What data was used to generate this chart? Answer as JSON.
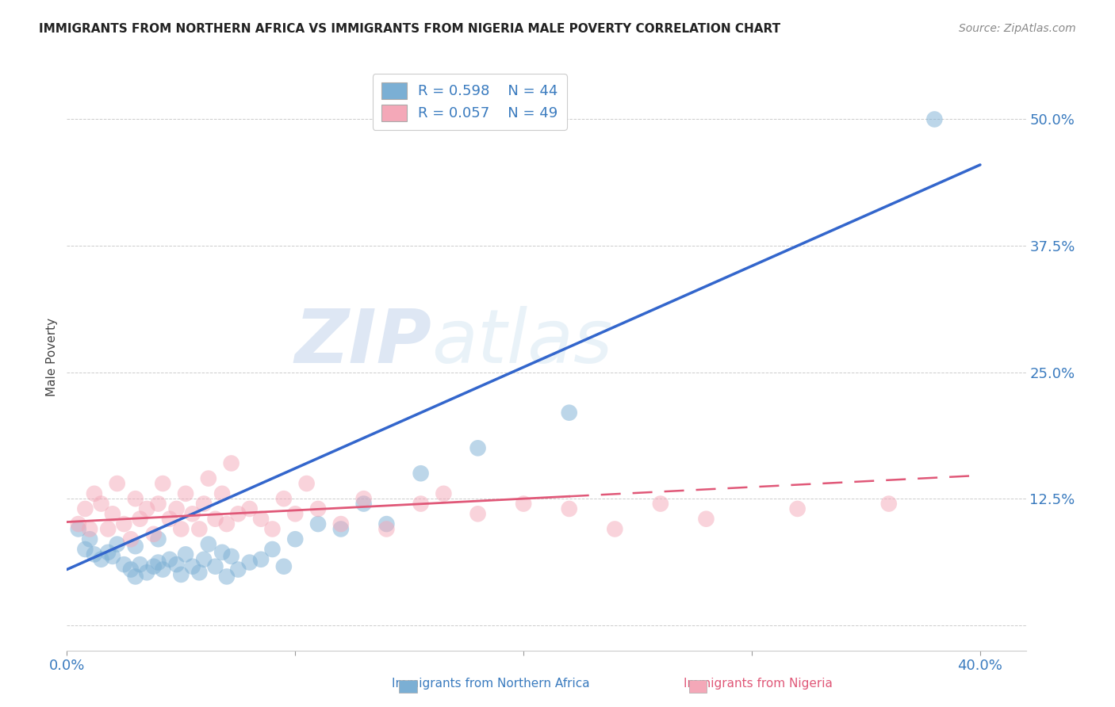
{
  "title": "IMMIGRANTS FROM NORTHERN AFRICA VS IMMIGRANTS FROM NIGERIA MALE POVERTY CORRELATION CHART",
  "source": "Source: ZipAtlas.com",
  "ylabel": "Male Poverty",
  "y_ticks": [
    0.0,
    0.125,
    0.25,
    0.375,
    0.5
  ],
  "y_tick_labels": [
    "",
    "12.5%",
    "25.0%",
    "37.5%",
    "50.0%"
  ],
  "x_lim": [
    0.0,
    0.42
  ],
  "y_lim": [
    -0.025,
    0.555
  ],
  "legend_r1": "R = 0.598",
  "legend_n1": "N = 44",
  "legend_r2": "R = 0.057",
  "legend_n2": "N = 49",
  "color_blue": "#7BAFD4",
  "color_pink": "#F4A8B8",
  "color_blue_line": "#3366CC",
  "color_pink_line": "#E05878",
  "watermark_zip": "ZIP",
  "watermark_atlas": "atlas",
  "blue_scatter_x": [
    0.005,
    0.008,
    0.01,
    0.012,
    0.015,
    0.018,
    0.02,
    0.022,
    0.025,
    0.028,
    0.03,
    0.03,
    0.032,
    0.035,
    0.038,
    0.04,
    0.04,
    0.042,
    0.045,
    0.048,
    0.05,
    0.052,
    0.055,
    0.058,
    0.06,
    0.062,
    0.065,
    0.068,
    0.07,
    0.072,
    0.075,
    0.08,
    0.085,
    0.09,
    0.095,
    0.1,
    0.11,
    0.12,
    0.13,
    0.14,
    0.155,
    0.18,
    0.22,
    0.38
  ],
  "blue_scatter_y": [
    0.095,
    0.075,
    0.085,
    0.07,
    0.065,
    0.072,
    0.068,
    0.08,
    0.06,
    0.055,
    0.048,
    0.078,
    0.06,
    0.052,
    0.058,
    0.062,
    0.085,
    0.055,
    0.065,
    0.06,
    0.05,
    0.07,
    0.058,
    0.052,
    0.065,
    0.08,
    0.058,
    0.072,
    0.048,
    0.068,
    0.055,
    0.062,
    0.065,
    0.075,
    0.058,
    0.085,
    0.1,
    0.095,
    0.12,
    0.1,
    0.15,
    0.175,
    0.21,
    0.5
  ],
  "pink_scatter_x": [
    0.005,
    0.008,
    0.01,
    0.012,
    0.015,
    0.018,
    0.02,
    0.022,
    0.025,
    0.028,
    0.03,
    0.032,
    0.035,
    0.038,
    0.04,
    0.042,
    0.045,
    0.048,
    0.05,
    0.052,
    0.055,
    0.058,
    0.06,
    0.062,
    0.065,
    0.068,
    0.07,
    0.072,
    0.075,
    0.08,
    0.085,
    0.09,
    0.095,
    0.1,
    0.105,
    0.11,
    0.12,
    0.13,
    0.14,
    0.155,
    0.165,
    0.18,
    0.2,
    0.22,
    0.24,
    0.26,
    0.28,
    0.32,
    0.36
  ],
  "pink_scatter_y": [
    0.1,
    0.115,
    0.095,
    0.13,
    0.12,
    0.095,
    0.11,
    0.14,
    0.1,
    0.085,
    0.125,
    0.105,
    0.115,
    0.09,
    0.12,
    0.14,
    0.105,
    0.115,
    0.095,
    0.13,
    0.11,
    0.095,
    0.12,
    0.145,
    0.105,
    0.13,
    0.1,
    0.16,
    0.11,
    0.115,
    0.105,
    0.095,
    0.125,
    0.11,
    0.14,
    0.115,
    0.1,
    0.125,
    0.095,
    0.12,
    0.13,
    0.11,
    0.12,
    0.115,
    0.095,
    0.12,
    0.105,
    0.115,
    0.12
  ],
  "blue_line_x0": 0.0,
  "blue_line_y0": 0.055,
  "blue_line_x1": 0.4,
  "blue_line_y1": 0.455,
  "pink_line_x0": 0.0,
  "pink_line_y0": 0.102,
  "pink_line_x1": 0.4,
  "pink_line_y1": 0.148
}
